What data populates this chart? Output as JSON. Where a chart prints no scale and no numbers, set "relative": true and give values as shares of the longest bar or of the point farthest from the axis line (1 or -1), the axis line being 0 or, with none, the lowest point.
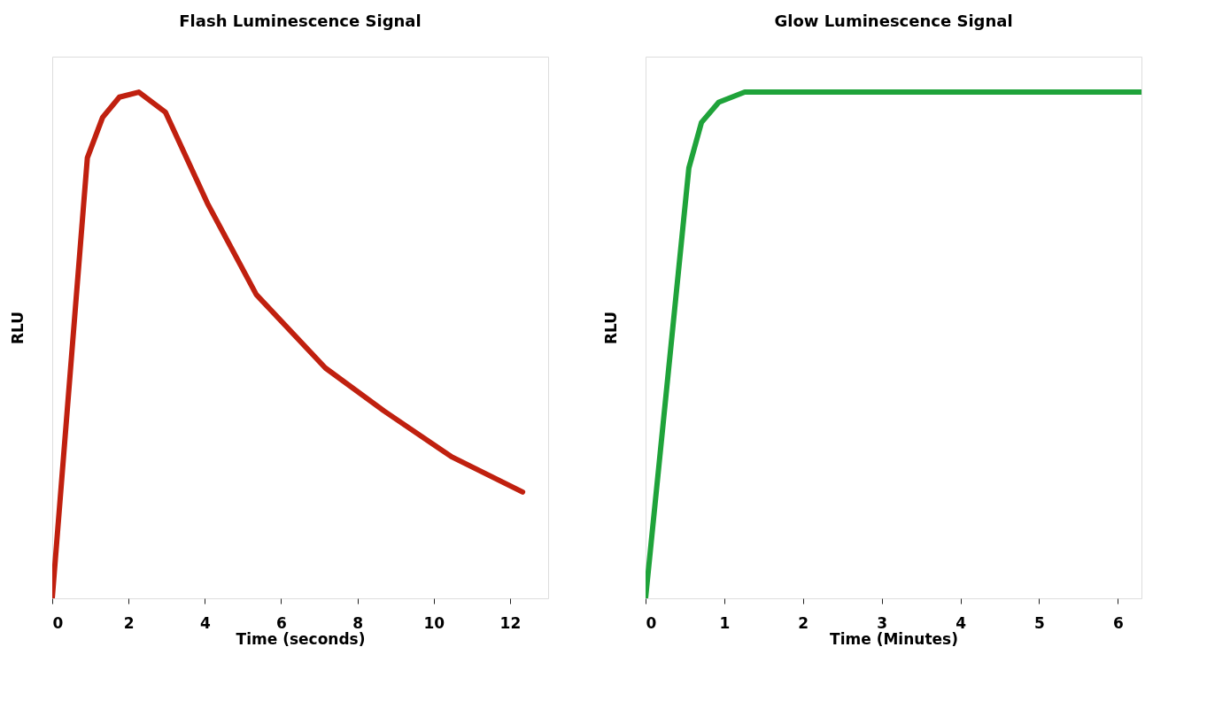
{
  "chart_data": [
    {
      "type": "line",
      "title": "Flash Luminescence Signal",
      "xlabel": "Time (seconds)",
      "ylabel": "RLU",
      "relative": true,
      "tick_labels": "x",
      "xlim": [
        0,
        13
      ],
      "xticks": [
        0,
        2,
        4,
        6,
        8,
        10,
        12
      ],
      "x": [
        0,
        0.92,
        1.32,
        1.76,
        2.27,
        2.97,
        4.07,
        5.35,
        7.16,
        8.7,
        10.46,
        12.33
      ],
      "series": [
        {
          "color": "#c0200f",
          "values": [
            0,
            0.87,
            0.95,
            0.99,
            1.0,
            0.96,
            0.78,
            0.6,
            0.455,
            0.37,
            0.28,
            0.21
          ]
        }
      ]
    },
    {
      "type": "line",
      "title": "Glow Luminescence Signal",
      "xlabel": "Time (Minutes)",
      "ylabel": "RLU",
      "relative": true,
      "tick_labels": "x",
      "xlim": [
        0,
        6.3
      ],
      "xticks": [
        0,
        1,
        2,
        3,
        4,
        5,
        6
      ],
      "x": [
        0,
        0.55,
        0.71,
        0.93,
        1.26,
        6.3
      ],
      "series": [
        {
          "color": "#1fa33a",
          "values": [
            0,
            0.85,
            0.94,
            0.98,
            1.0,
            1.0
          ]
        }
      ]
    }
  ]
}
